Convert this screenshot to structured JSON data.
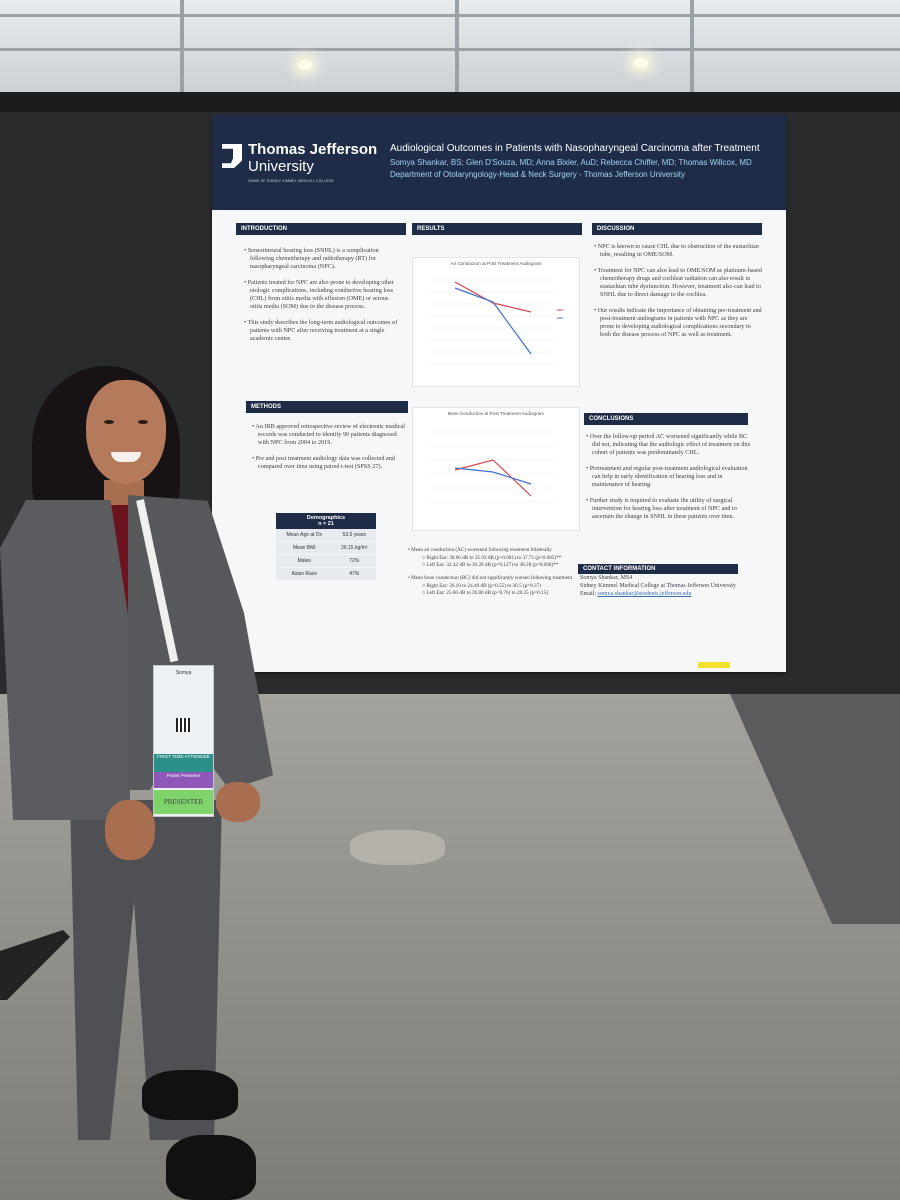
{
  "poster": {
    "logo_name_line1": "Thomas Jefferson",
    "logo_name_line2": "University",
    "logo_sub": "HOME OF SIDNEY KIMMEL MEDICAL COLLEGE",
    "title": "Audiological Outcomes in Patients with Nasopharyngeal Carcinoma after Treatment",
    "authors": "Somya Shankar, BS; Glen D'Souza, MD; Anna Bixler, AuD; Rebecca Chiffer, MD; Thomas Willcox, MD",
    "department": "Department of Otolaryngology-Head & Neck Surgery - Thomas Jefferson University",
    "introduction": {
      "heading": "INTRODUCTION",
      "bullets": [
        "Sensorineural hearing loss (SNHL) is a complication following chemotherapy and radiotherapy (RT) for nasopharyngeal carcinoma (NPC).",
        "Patients treated for NPC are also prone to developing other otologic complications, including conductive hearing loss (CHL) from otitis media with effusion (OME) or serous otitis media (SOM) due to the disease process.",
        "This study describes the long-term audiological outcomes of patients with NPC after receiving treatment at a single academic center."
      ]
    },
    "methods": {
      "heading": "METHODS",
      "bullets": [
        "An IRB approved retrospective review of electronic medical records was conducted to identify 90 patients diagnosed with NPC from 2004 to 2019.",
        "Pre and post treatment audiology data was collected and compared over time using paired t-test (SPSS 27)."
      ]
    },
    "demographics": {
      "title": "Demographics",
      "n": "n = 21",
      "rows": [
        {
          "label": "Mean Age at Dx",
          "value": "53.5 years"
        },
        {
          "label": "Mean BMI",
          "value": "26.15 kg/m²"
        },
        {
          "label": "Males",
          "value": "72%"
        },
        {
          "label": "Asian Race",
          "value": "47%"
        }
      ]
    },
    "results": {
      "heading": "RESULTS",
      "chart1_title": "Air Conduction at Post Treatment Audiogram",
      "chart2_title": "Bone Conduction at Post Treatment Audiogram",
      "bullets": [
        "Mean air conduction (AC) worsened following treatment bilaterally",
        "Mean bone conduction (BC) did not significantly worsen following treatment"
      ],
      "ac_sub": [
        "Right Ear: 30.66 dB to 35.93 dB (p=0.081) to 37.71 (p=0.005)**",
        "Left Ear: 32.42 dB to 36.28 dB (p=0.127) to 48.28 (p=0.008)**"
      ],
      "bc_sub": [
        "Right Ear: 26.18 to 24.49 dB (p=0.55) to 30.5 (p=0.37)",
        "Left Ear: 25.60 dB to 26.80 dB (p=0.76) to 28.25 (p=0.15)"
      ]
    },
    "discussion": {
      "heading": "DISCUSSION",
      "bullets": [
        "NPC is known to cause CHL due to obstruction of the eustachian tube, resulting in OME/SOM.",
        "Treatment for NPC can also lead to OME/SOM as platinum-based chemotherapy drugs and cochlear radiation can also result in eustachian tube dysfunction. However, treatment also can lead to SNHL due to direct damage to the cochlea.",
        "Our results indicate the importance of obtaining pre-treatment and post-treatment audiograms in patients with NPC as they are prone to developing audiological complications secondary to both the disease process of NPC as well as treatment."
      ]
    },
    "conclusions": {
      "heading": "CONCLUSIONS",
      "bullets": [
        "Over the follow-up period AC worsened significantly while BC did not, indicating that the audiologic effect of treatment on this cohort of patients was predominately CHL.",
        "Pretreatment and regular post-treatment audiological evaluation can help in early identification of hearing loss and in maintenance of hearing.",
        "Further study is required to evaluate the utility of surgical intervention for hearing loss after treatment of NPC and to ascertain the change in SNHL in these patients over time."
      ]
    },
    "contact": {
      "heading": "CONTACT INFORMATION",
      "name": "Somya Shankar, MS4",
      "affiliation": "Sidney Kimmel Medical College at Thomas Jefferson University",
      "email_label": "Email:",
      "email": "somya.shankar@students.jefferson.edu"
    }
  },
  "badge": {
    "name": "Somya",
    "band1": "FIRST TIME ATTENDEE",
    "band2": "Poster Presenter",
    "band3": "PRESENTER"
  },
  "colors": {
    "poster_header": "#1f2c47",
    "accent_text": "#9fd6f5",
    "right_ear": "#d9434f",
    "left_ear": "#3f6fd1"
  }
}
